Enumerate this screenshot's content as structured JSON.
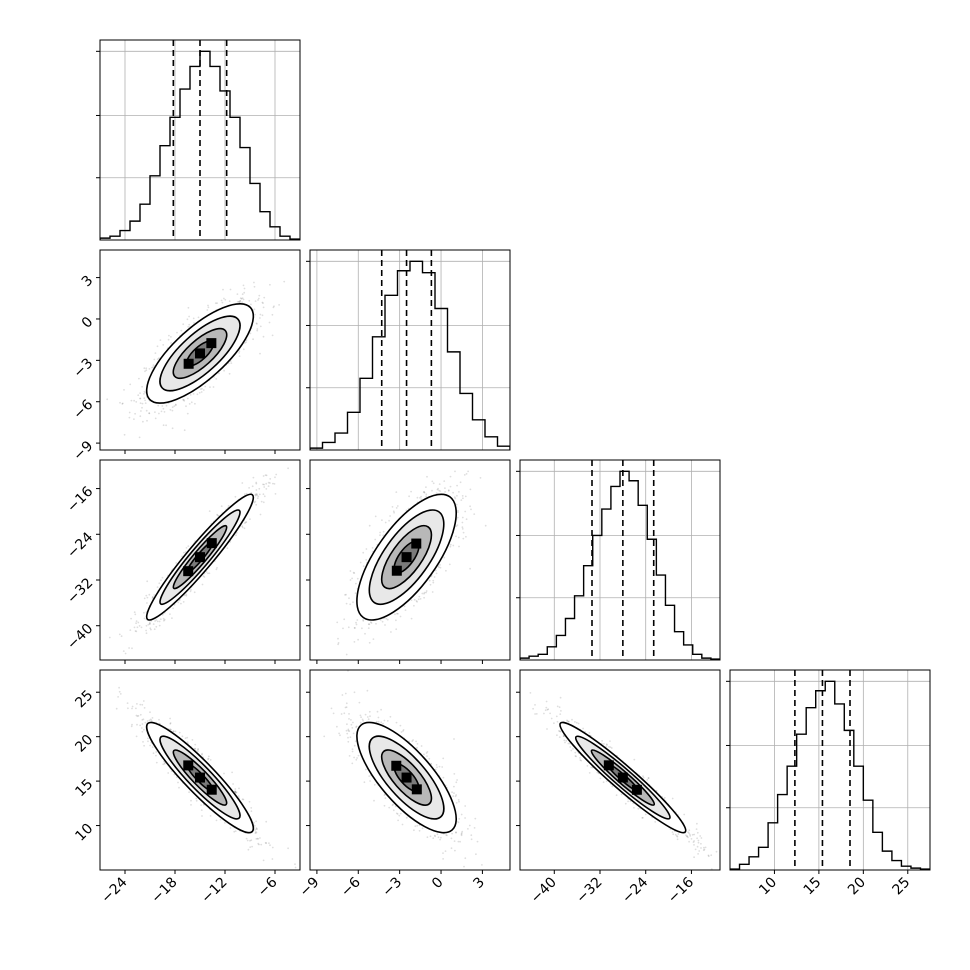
{
  "chart_data": {
    "type": "corner",
    "n_params": 4,
    "grid": true,
    "parameters": [
      {
        "mean": -15,
        "sd": 3.2,
        "range": [
          -27,
          -3
        ],
        "ticks": [
          -24,
          -18,
          -12,
          -6
        ],
        "quantiles": [
          -18.2,
          -15.0,
          -11.8
        ]
      },
      {
        "mean": -2.5,
        "sd": 1.8,
        "range": [
          -9.5,
          5
        ],
        "ticks": [
          -9,
          -6,
          -3,
          0,
          3
        ],
        "quantiles": [
          -4.3,
          -2.5,
          -0.7
        ]
      },
      {
        "mean": -28,
        "sd": 5.5,
        "range": [
          -46,
          -11
        ],
        "ticks": [
          -40,
          -32,
          -24,
          -16
        ],
        "quantiles": [
          -33.4,
          -28.0,
          -22.6
        ]
      },
      {
        "mean": 15.4,
        "sd": 3.1,
        "range": [
          5,
          27.5
        ],
        "ticks": [
          10,
          15,
          20,
          25
        ],
        "quantiles": [
          12.3,
          15.4,
          18.5
        ]
      }
    ],
    "correlations": [
      {
        "pair": [
          0,
          1
        ],
        "r": 0.75
      },
      {
        "pair": [
          0,
          2
        ],
        "r": 0.95
      },
      {
        "pair": [
          1,
          2
        ],
        "r": 0.7
      },
      {
        "pair": [
          0,
          3
        ],
        "r": -0.92
      },
      {
        "pair": [
          1,
          3
        ],
        "r": -0.75
      },
      {
        "pair": [
          2,
          3
        ],
        "r": -0.96
      }
    ],
    "histograms": [
      [
        0.01,
        0.02,
        0.05,
        0.1,
        0.19,
        0.34,
        0.5,
        0.65,
        0.8,
        0.92,
        1.0,
        0.92,
        0.79,
        0.65,
        0.49,
        0.3,
        0.15,
        0.07,
        0.02,
        0.005
      ],
      [
        0.01,
        0.04,
        0.09,
        0.2,
        0.38,
        0.6,
        0.82,
        0.95,
        1.0,
        0.94,
        0.75,
        0.52,
        0.3,
        0.16,
        0.07,
        0.02
      ],
      [
        0.01,
        0.02,
        0.03,
        0.07,
        0.13,
        0.22,
        0.34,
        0.5,
        0.66,
        0.8,
        0.92,
        1.0,
        0.95,
        0.82,
        0.64,
        0.45,
        0.29,
        0.15,
        0.08,
        0.03,
        0.01,
        0.005
      ],
      [
        0.005,
        0.03,
        0.07,
        0.12,
        0.25,
        0.4,
        0.55,
        0.72,
        0.86,
        0.95,
        1.0,
        0.88,
        0.74,
        0.55,
        0.37,
        0.2,
        0.1,
        0.05,
        0.02,
        0.01,
        0.005
      ]
    ]
  }
}
